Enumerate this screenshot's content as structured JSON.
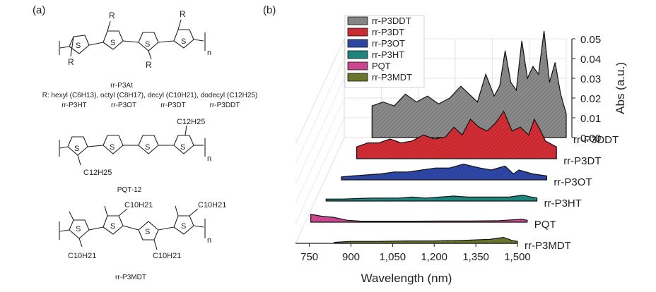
{
  "panels": {
    "a": "(a)",
    "b": "(b)"
  },
  "structures": {
    "p3at": {
      "substituent": "R",
      "sulfur": "S",
      "repeat": "n",
      "name": "rr-P3At",
      "r_list": "R: hexyl (C6H13), octyl (C8H17), decyl (C10H21), dodecyl (C12H25)",
      "variants": [
        "rr-P3HT",
        "rr-P3OT",
        "rr-P3DT",
        "rr-P3DDT"
      ]
    },
    "pqt": {
      "side_chain": "C12H25",
      "name": "PQT-12"
    },
    "p3mdt": {
      "side_chain": "C10H21",
      "name": "rr-P3MDT"
    }
  },
  "colors": {
    "rr-P3DDT": "#8a8a8a",
    "rr-P3DT": "#d42d35",
    "rr-P3OT": "#2e47a8",
    "rr-P3HT": "#1f8a82",
    "PQT": "#d24a94",
    "rr-P3MDT": "#6e7a2e"
  },
  "chart_data": {
    "type": "area",
    "projection": "3d-waterfall",
    "xlabel": "Wavelength (nm)",
    "zlabel": "Abs (a.u.)",
    "x_ticks": [
      "750",
      "900",
      "1,050",
      "1,200",
      "1,350",
      "1,500"
    ],
    "z_ticks": [
      "0.00",
      "0.01",
      "0.02",
      "0.03",
      "0.04",
      "0.05"
    ],
    "xlim": [
      700,
      1500
    ],
    "zlim": [
      0,
      0.05
    ],
    "legend": {
      "position": "top-left",
      "entries": [
        "rr-P3DDT",
        "rr-P3DT",
        "rr-P3OT",
        "rr-P3HT",
        "PQT",
        "rr-P3MDT"
      ]
    },
    "series": [
      {
        "name": "rr-P3MDT",
        "x": [
          840,
          900,
          1000,
          1100,
          1200,
          1300,
          1400,
          1450,
          1480,
          1500
        ],
        "values": [
          0.0005,
          0.001,
          0.001,
          0.0012,
          0.0012,
          0.0015,
          0.002,
          0.003,
          0.0015,
          0.001
        ]
      },
      {
        "name": "PQT",
        "x": [
          720,
          760,
          800,
          850,
          900,
          1000,
          1100,
          1200,
          1300,
          1400,
          1480,
          1500
        ],
        "values": [
          0.004,
          0.003,
          0.0025,
          0.001,
          0.0005,
          0.0005,
          0.0005,
          0.0006,
          0.0006,
          0.0008,
          0.0015,
          0.001
        ]
      },
      {
        "name": "rr-P3HT",
        "x": [
          740,
          800,
          900,
          1000,
          1050,
          1100,
          1150,
          1200,
          1250,
          1300,
          1400,
          1450,
          1480,
          1500
        ],
        "values": [
          0.001,
          0.001,
          0.0015,
          0.0015,
          0.002,
          0.0015,
          0.002,
          0.0025,
          0.002,
          0.002,
          0.002,
          0.003,
          0.002,
          0.0015
        ]
      },
      {
        "name": "rr-P3OT",
        "x": [
          760,
          800,
          850,
          900,
          950,
          1000,
          1050,
          1100,
          1150,
          1200,
          1230,
          1260,
          1300,
          1350,
          1380,
          1400,
          1450,
          1500
        ],
        "values": [
          0.0015,
          0.002,
          0.0025,
          0.003,
          0.004,
          0.004,
          0.005,
          0.006,
          0.006,
          0.008,
          0.007,
          0.006,
          0.005,
          0.007,
          0.003,
          0.005,
          0.003,
          0.002
        ]
      },
      {
        "name": "rr-P3DT",
        "x": [
          780,
          820,
          860,
          900,
          940,
          980,
          1020,
          1060,
          1100,
          1130,
          1160,
          1190,
          1220,
          1250,
          1280,
          1310,
          1340,
          1370,
          1400,
          1420,
          1440,
          1460,
          1500
        ],
        "values": [
          0.006,
          0.008,
          0.008,
          0.01,
          0.008,
          0.009,
          0.012,
          0.01,
          0.011,
          0.016,
          0.012,
          0.02,
          0.016,
          0.014,
          0.018,
          0.024,
          0.014,
          0.016,
          0.012,
          0.02,
          0.015,
          0.009,
          0.006
        ]
      },
      {
        "name": "rr-P3DDT",
        "x": [
          800,
          840,
          880,
          920,
          960,
          1000,
          1040,
          1080,
          1120,
          1150,
          1180,
          1210,
          1240,
          1260,
          1280,
          1300,
          1320,
          1340,
          1360,
          1380,
          1400,
          1420,
          1440,
          1460,
          1480,
          1500
        ],
        "values": [
          0.016,
          0.018,
          0.016,
          0.022,
          0.018,
          0.021,
          0.017,
          0.02,
          0.026,
          0.022,
          0.018,
          0.032,
          0.021,
          0.026,
          0.044,
          0.028,
          0.024,
          0.049,
          0.03,
          0.036,
          0.032,
          0.054,
          0.028,
          0.038,
          0.022,
          0.012
        ]
      }
    ]
  }
}
